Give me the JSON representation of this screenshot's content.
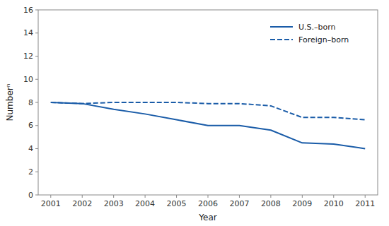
{
  "chart_data": {
    "type": "line",
    "xlabel": "Year",
    "ylabel": "Numberⁿ",
    "x": [
      2001,
      2002,
      2003,
      2004,
      2005,
      2006,
      2007,
      2008,
      2009,
      2010,
      2011
    ],
    "series": [
      {
        "name": "U.S.–born",
        "color": "#1a5ca8",
        "line_style": "solid",
        "values": [
          8.0,
          7.9,
          7.4,
          7.0,
          6.5,
          6.0,
          6.0,
          5.6,
          4.5,
          4.4,
          4.0
        ]
      },
      {
        "name": "Foreign–born",
        "color": "#1a5ca8",
        "line_style": "dashed",
        "values": [
          8.0,
          7.9,
          8.0,
          8.0,
          8.0,
          7.9,
          7.9,
          7.7,
          6.7,
          6.7,
          6.5
        ]
      }
    ],
    "xlim": [
      2000.6,
      2011.4
    ],
    "xticks": [
      2001,
      2002,
      2003,
      2004,
      2005,
      2006,
      2007,
      2008,
      2009,
      2010,
      2011
    ],
    "ylim": [
      0,
      16
    ],
    "yticks": [
      0,
      2,
      4,
      6,
      8,
      10,
      12,
      14,
      16
    ],
    "legend": "upper right",
    "grid": false
  }
}
